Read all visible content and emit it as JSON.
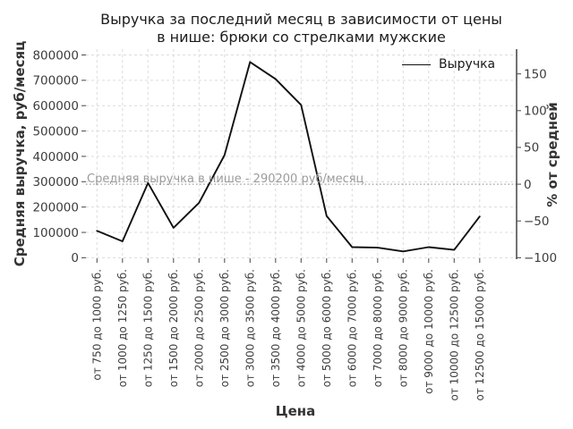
{
  "title": {
    "line1": "Выручка за последний месяц в зависимости от цены",
    "line2": "в нише: брюки со стрелками мужские"
  },
  "legend": {
    "label": "Выручка"
  },
  "average_line": {
    "text": "Средняя выручка в нише - 290200 руб/месяц",
    "value": 290200
  },
  "axes": {
    "y_left": {
      "label": "Средняя выручка, руб/месяц",
      "ticks": [
        "0",
        "100000",
        "200000",
        "300000",
        "400000",
        "500000",
        "600000",
        "700000",
        "800000"
      ]
    },
    "y_right": {
      "label": "% от средней",
      "ticks": [
        "−100",
        "−50",
        "0",
        "50",
        "100",
        "150"
      ]
    },
    "x": {
      "label": "Цена"
    }
  },
  "colors": {
    "series": "#101010",
    "grid": "#dcdcdc",
    "average_line": "#9c9c9c",
    "annotation_text": "#9b9b9b"
  },
  "chart_data": {
    "type": "line",
    "title": "Выручка за последний месяц в зависимости от цены в нише: брюки со стрелками мужские",
    "xlabel": "Цена",
    "ylabel_left": "Средняя выручка, руб/месяц",
    "ylabel_right": "% от средней",
    "ylim_left": [
      0,
      800000
    ],
    "yticks_left": [
      0,
      100000,
      200000,
      300000,
      400000,
      500000,
      600000,
      700000,
      800000
    ],
    "yticks_right_percent": [
      -100,
      -50,
      0,
      50,
      100,
      150
    ],
    "grid": true,
    "legend_position": "upper right",
    "average_revenue_rub_per_month": 290200,
    "categories": [
      "от 750 до 1000 руб.",
      "от 1000 до 1250 руб.",
      "от 1250 до 1500 руб.",
      "от 1500 до 2000 руб.",
      "от 2000 до 2500 руб.",
      "от 2500 до 3000 руб.",
      "от 3000 до 3500 руб.",
      "от 3500 до 4000 руб.",
      "от 4000 до 5000 руб.",
      "от 5000 до 6000 руб.",
      "от 6000 до 7000 руб.",
      "от 7000 до 8000 руб.",
      "от 8000 до 9000 руб.",
      "от 9000 до 10000 руб.",
      "от 10000 до 12500 руб.",
      "от 12500 до 15000 руб."
    ],
    "series": [
      {
        "name": "Выручка",
        "values": [
          106000,
          65000,
          295000,
          118000,
          217000,
          405000,
          772000,
          705000,
          603000,
          165000,
          42000,
          40000,
          25000,
          42000,
          31000,
          163000
        ]
      }
    ]
  }
}
